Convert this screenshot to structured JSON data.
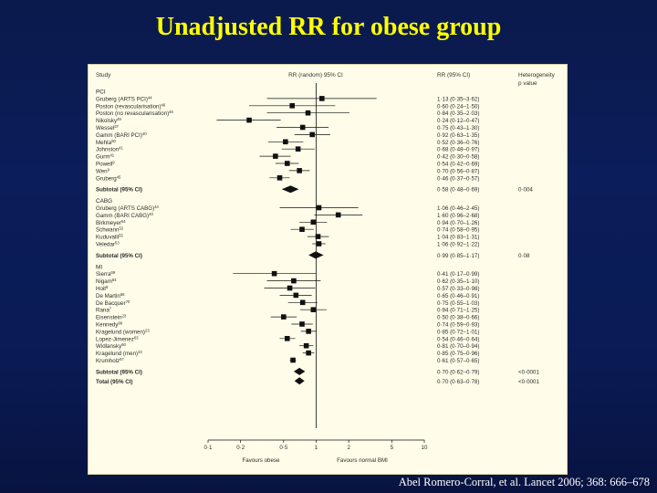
{
  "slide": {
    "title": "Unadjusted RR for obese group",
    "citation": "Abel Romero-Corral, et al. Lancet 2006; 368: 666–678"
  },
  "colors": {
    "background": "#0b1a4c",
    "title": "#ffff00",
    "panel": "#fffde9",
    "marker": "#111111"
  },
  "chart_data": {
    "type": "forest",
    "headers": {
      "study": "Study",
      "rr_random": "RR (random) 95% CI",
      "rr_ci": "RR (95% CI)",
      "heterogeneity": "Heterogeneity",
      "heterogeneity_sub": "p value"
    },
    "x_scale": "log",
    "xlim": [
      0.1,
      10
    ],
    "x_ticks": [
      {
        "value": 0.1,
        "label": "0·1"
      },
      {
        "value": 0.2,
        "label": "0·2"
      },
      {
        "value": 0.5,
        "label": "0·5"
      },
      {
        "value": 1,
        "label": "1"
      },
      {
        "value": 2,
        "label": "2"
      },
      {
        "value": 5,
        "label": "5"
      },
      {
        "value": 10,
        "label": "10"
      }
    ],
    "xlabel_left": "Favours obese",
    "xlabel_right": "Favours normal BMI",
    "rows": [
      {
        "kind": "group",
        "label": "PCI"
      },
      {
        "kind": "study",
        "label": "Gruberg (ARTS PCI)",
        "ref": "44",
        "rr": 1.13,
        "lo": 0.35,
        "hi": 3.62,
        "ci_text": "1·13 (0·35–3·62)"
      },
      {
        "kind": "study",
        "label": "Poston (revascularisation)",
        "ref": "46",
        "rr": 0.6,
        "lo": 0.24,
        "hi": 1.5,
        "ci_text": "0·60 (0·24–1·50)"
      },
      {
        "kind": "study",
        "label": "Poston (no revascularisation)",
        "ref": "46",
        "rr": 0.84,
        "lo": 0.35,
        "hi": 2.03,
        "ci_text": "0·84 (0·35–2·03)"
      },
      {
        "kind": "study",
        "label": "Nikolsky",
        "ref": "49",
        "rr": 0.24,
        "lo": 0.12,
        "hi": 0.47,
        "ci_text": "0·24 (0·12–0·47)"
      },
      {
        "kind": "study",
        "label": "Wessel",
        "ref": "37",
        "rr": 0.75,
        "lo": 0.43,
        "hi": 1.3,
        "ci_text": "0·75 (0·43–1·30)"
      },
      {
        "kind": "study",
        "label": "Gamm (BARI PCI)",
        "ref": "40",
        "rr": 0.92,
        "lo": 0.63,
        "hi": 1.35,
        "ci_text": "0·92 (0·63–1·35)"
      },
      {
        "kind": "study",
        "label": "Mehta",
        "ref": "50",
        "rr": 0.52,
        "lo": 0.36,
        "hi": 0.76,
        "ci_text": "0·52 (0·36–0·76)"
      },
      {
        "kind": "study",
        "label": "Johnston",
        "ref": "41",
        "rr": 0.68,
        "lo": 0.48,
        "hi": 0.97,
        "ci_text": "0·68 (0·48–0·97)"
      },
      {
        "kind": "study",
        "label": "Gurm",
        "ref": "41",
        "rr": 0.42,
        "lo": 0.3,
        "hi": 0.58,
        "ci_text": "0·42 (0·30–0·58)"
      },
      {
        "kind": "study",
        "label": "Powell",
        "ref": "9",
        "rr": 0.54,
        "lo": 0.42,
        "hi": 0.69,
        "ci_text": "0·54 (0·42–0·69)"
      },
      {
        "kind": "study",
        "label": "Wen",
        "ref": "9",
        "rr": 0.7,
        "lo": 0.56,
        "hi": 0.87,
        "ci_text": "0·70 (0·56–0·87)"
      },
      {
        "kind": "study",
        "label": "Gruberg",
        "ref": "45",
        "rr": 0.46,
        "lo": 0.37,
        "hi": 0.57,
        "ci_text": "0·46 (0·37–0·57)"
      },
      {
        "kind": "subtotal",
        "label": "Subtotal (95% CI)",
        "rr": 0.58,
        "lo": 0.48,
        "hi": 0.69,
        "ci_text": "0·58 (0·48–0·69)",
        "het": "0·004"
      },
      {
        "kind": "group",
        "label": "CABG"
      },
      {
        "kind": "study",
        "label": "Gruberg (ARTS CABG)",
        "ref": "44",
        "rr": 1.06,
        "lo": 0.46,
        "hi": 2.45,
        "ci_text": "1·06 (0·46–2·45)"
      },
      {
        "kind": "study",
        "label": "Gamm (BARI CABG)",
        "ref": "40",
        "rr": 1.6,
        "lo": 0.96,
        "hi": 2.68,
        "ci_text": "1·60 (0·96–2·68)"
      },
      {
        "kind": "study",
        "label": "Birkmeyer",
        "ref": "54",
        "rr": 0.94,
        "lo": 0.7,
        "hi": 1.26,
        "ci_text": "0·94 (0·70–1·26)"
      },
      {
        "kind": "study",
        "label": "Schwann",
        "ref": "52",
        "rr": 0.74,
        "lo": 0.58,
        "hi": 0.95,
        "ci_text": "0·74 (0·58–0·95)"
      },
      {
        "kind": "study",
        "label": "Kuduvalli",
        "ref": "55",
        "rr": 1.04,
        "lo": 0.83,
        "hi": 1.31,
        "ci_text": "1·04 (0·83–1·31)"
      },
      {
        "kind": "study",
        "label": "Veledar",
        "ref": "53",
        "rr": 1.06,
        "lo": 0.92,
        "hi": 1.22,
        "ci_text": "1·06 (0·92–1·22)"
      },
      {
        "kind": "subtotal",
        "label": "Subtotal (95% CI)",
        "rr": 0.99,
        "lo": 0.85,
        "hi": 1.17,
        "ci_text": "0·99 (0·85–1·17)",
        "het": "0·08"
      },
      {
        "kind": "group",
        "label": "MI"
      },
      {
        "kind": "study",
        "label": "Sierra",
        "ref": "69",
        "rr": 0.41,
        "lo": 0.17,
        "hi": 0.99,
        "ci_text": "0·41 (0·17–0·99)"
      },
      {
        "kind": "study",
        "label": "Nigam",
        "ref": "64",
        "rr": 0.62,
        "lo": 0.35,
        "hi": 1.1,
        "ci_text": "0·62 (0·35–1·10)"
      },
      {
        "kind": "study",
        "label": "Hoit",
        "ref": "8",
        "rr": 0.57,
        "lo": 0.33,
        "hi": 0.98,
        "ci_text": "0·57 (0·33–0·98)"
      },
      {
        "kind": "study",
        "label": "De Martin",
        "ref": "66",
        "rr": 0.65,
        "lo": 0.46,
        "hi": 0.91,
        "ci_text": "0·65 (0·46–0·91)"
      },
      {
        "kind": "study",
        "label": "De Bacquer",
        "ref": "70",
        "rr": 0.75,
        "lo": 0.55,
        "hi": 1.03,
        "ci_text": "0·75 (0·55–1·03)"
      },
      {
        "kind": "study",
        "label": "Rana",
        "ref": "7",
        "rr": 0.94,
        "lo": 0.71,
        "hi": 1.25,
        "ci_text": "0·94 (0·71–1·25)"
      },
      {
        "kind": "study",
        "label": "Eisenstein",
        "ref": "23",
        "rr": 0.5,
        "lo": 0.38,
        "hi": 0.66,
        "ci_text": "0·50 (0·38–0·66)"
      },
      {
        "kind": "study",
        "label": "Kennedy",
        "ref": "68",
        "rr": 0.74,
        "lo": 0.59,
        "hi": 0.93,
        "ci_text": "0·74 (0·59–0·93)"
      },
      {
        "kind": "study",
        "label": "Kragelund (women)",
        "ref": "23",
        "rr": 0.85,
        "lo": 0.72,
        "hi": 1.01,
        "ci_text": "0·85 (0·72–1·01)"
      },
      {
        "kind": "study",
        "label": "Lopez-Jimenez",
        "ref": "63",
        "rr": 0.54,
        "lo": 0.46,
        "hi": 0.64,
        "ci_text": "0·54 (0·46–0·64)"
      },
      {
        "kind": "study",
        "label": "Widlansky",
        "ref": "60",
        "rr": 0.81,
        "lo": 0.7,
        "hi": 0.94,
        "ci_text": "0·81 (0·70–0·94)"
      },
      {
        "kind": "study",
        "label": "Kragelund (men)",
        "ref": "23",
        "rr": 0.85,
        "lo": 0.75,
        "hi": 0.96,
        "ci_text": "0·85 (0·75–0·96)"
      },
      {
        "kind": "study",
        "label": "Krumholz",
        "ref": "67",
        "rr": 0.61,
        "lo": 0.57,
        "hi": 0.65,
        "ci_text": "0·61 (0·57–0·65)"
      },
      {
        "kind": "subtotal",
        "label": "Subtotal (95% CI)",
        "rr": 0.7,
        "lo": 0.62,
        "hi": 0.79,
        "ci_text": "0·70 (0·62–0·79)",
        "het": "<0·0001"
      },
      {
        "kind": "subtotal",
        "label": "Total (95% CI)",
        "rr": 0.7,
        "lo": 0.63,
        "hi": 0.78,
        "ci_text": "0·70 (0·63–0·78)",
        "het": "<0·0001"
      }
    ]
  }
}
